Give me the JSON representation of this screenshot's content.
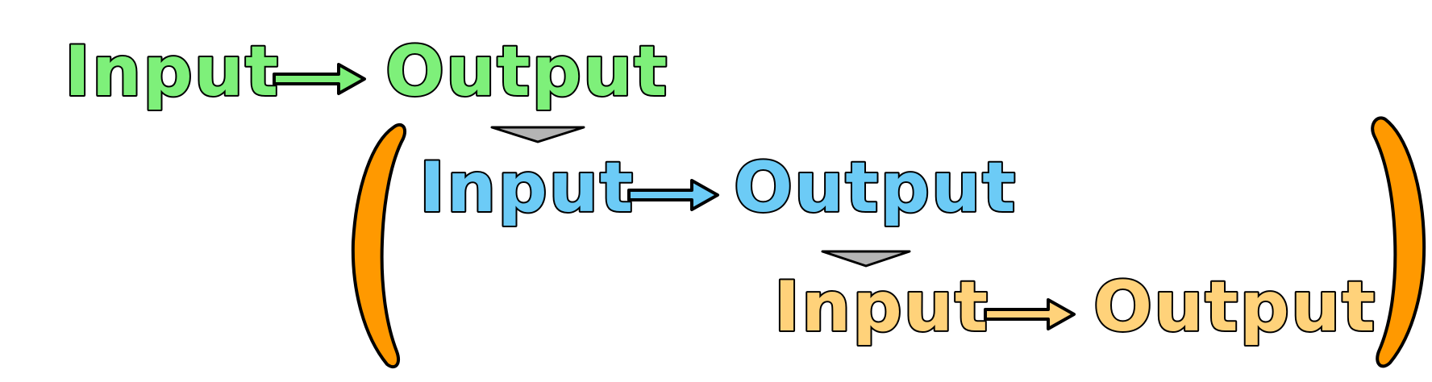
{
  "rows": [
    {
      "input_label": "Input",
      "output_label": "Output",
      "color": "#7ef07a"
    },
    {
      "input_label": "Input",
      "output_label": "Output",
      "color": "#6ccbf6"
    },
    {
      "input_label": "Input",
      "output_label": "Output",
      "color": "#ffd27a"
    }
  ],
  "arrow_color": "#7ef07a",
  "connector_color": "#b4b4b4",
  "bracket_color": "#ff9900"
}
